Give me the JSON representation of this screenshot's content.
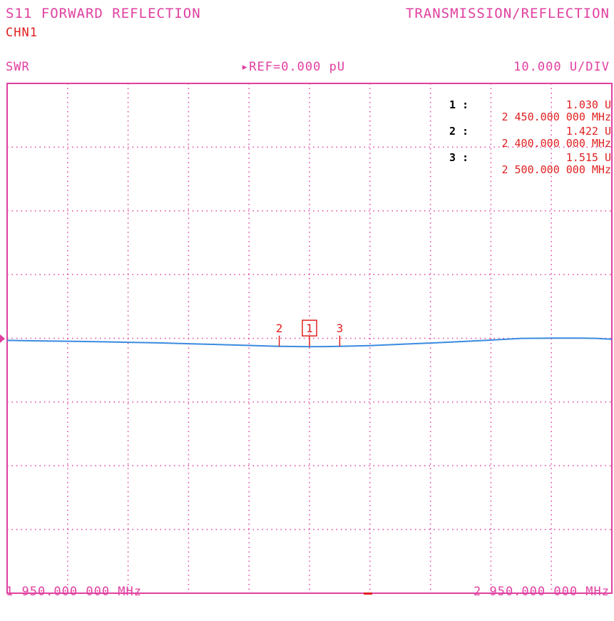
{
  "header": {
    "measurement": "S11 FORWARD REFLECTION",
    "mode": "TRANSMISSION/REFLECTION",
    "channel": "CHN1",
    "format": "SWR",
    "reference": "REF=0.000 pU",
    "scale": "10.000 U/DIV"
  },
  "footer": {
    "start": "1 950.000 000 MHz",
    "stop": "2 950.000 000 MHz"
  },
  "colors": {
    "grid": "#e040a0",
    "trace": "#3a8be0",
    "marker": "#e02020",
    "text": "#e040a0"
  },
  "chart_data": {
    "type": "line",
    "title": "S11 FORWARD REFLECTION",
    "xlabel": "",
    "ylabel": "SWR",
    "xlim": [
      1950,
      2950
    ],
    "x_unit": "MHz",
    "grid": true,
    "divisions": {
      "x": 10,
      "y": 8
    },
    "series": [
      {
        "name": "",
        "x": [
          1950,
          2000,
          2050,
          2100,
          2150,
          2200,
          2250,
          2300,
          2350,
          2400,
          2450,
          2475,
          2500,
          2550,
          2600,
          2650,
          2700,
          2750,
          2800,
          2850,
          2900,
          2925,
          2950
        ],
        "y": [
          -0.27,
          -0.34,
          -0.4,
          -0.48,
          -0.57,
          -0.66,
          -0.79,
          -0.92,
          -1.06,
          -1.2,
          -1.24,
          -1.23,
          -1.2,
          -1.08,
          -0.88,
          -0.68,
          -0.46,
          -0.22,
          0.05,
          0.08,
          0.08,
          0.05,
          -0.1
        ]
      }
    ],
    "markers": [
      {
        "id": "1",
        "label": "1 :",
        "value": "1.030 U",
        "freq": "2 450.000 000 MHz",
        "x": 2450,
        "active": true
      },
      {
        "id": "2",
        "label": "2 :",
        "value": "1.422 U",
        "freq": "2 400.000 000 MHz",
        "x": 2400,
        "active": false
      },
      {
        "id": "3",
        "label": "3 :",
        "value": "1.515 U",
        "freq": "2 500.000 000 MHz",
        "x": 2500,
        "active": false
      }
    ]
  }
}
